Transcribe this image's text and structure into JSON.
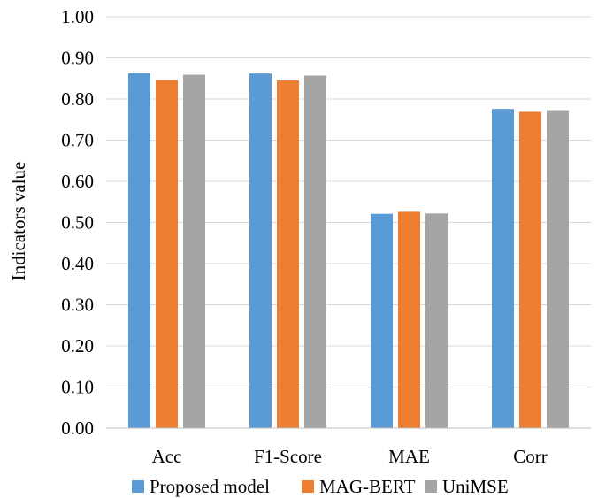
{
  "chart_data": {
    "type": "bar",
    "title": "",
    "xlabel": "",
    "ylabel": "Indicators value",
    "ylim": [
      0,
      1.0
    ],
    "y_ticks": [
      "0.00",
      "0.10",
      "0.20",
      "0.30",
      "0.40",
      "0.50",
      "0.60",
      "0.70",
      "0.80",
      "0.90",
      "1.00"
    ],
    "grid": true,
    "legend_position": "bottom",
    "categories": [
      "Acc",
      "F1-Score",
      "MAE",
      "Corr"
    ],
    "series": [
      {
        "name": "Proposed model",
        "color": "#5B9BD5",
        "values": [
          0.863,
          0.862,
          0.521,
          0.776
        ]
      },
      {
        "name": "MAG-BERT",
        "color": "#ED7D31",
        "values": [
          0.846,
          0.845,
          0.526,
          0.769
        ]
      },
      {
        "name": "UniMSE",
        "color": "#A5A5A5",
        "values": [
          0.859,
          0.857,
          0.522,
          0.773
        ]
      }
    ]
  }
}
